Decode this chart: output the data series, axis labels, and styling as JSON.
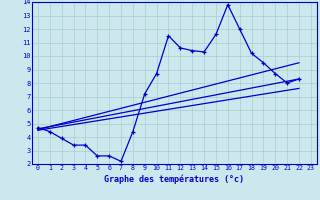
{
  "xlabel": "Graphe des températures (°c)",
  "xlim": [
    -0.5,
    23.5
  ],
  "ylim": [
    2,
    14
  ],
  "xticks": [
    0,
    1,
    2,
    3,
    4,
    5,
    6,
    7,
    8,
    9,
    10,
    11,
    12,
    13,
    14,
    15,
    16,
    17,
    18,
    19,
    20,
    21,
    22,
    23
  ],
  "yticks": [
    2,
    3,
    4,
    5,
    6,
    7,
    8,
    9,
    10,
    11,
    12,
    13,
    14
  ],
  "bg_color": "#cce8ee",
  "line_color": "#0000cc",
  "grid_color": "#aacccc",
  "temp_x": [
    0,
    1,
    2,
    3,
    4,
    5,
    6,
    7,
    8,
    9,
    10,
    11,
    12,
    13,
    14,
    15,
    16,
    17,
    18,
    19,
    20,
    21,
    22
  ],
  "temp_y": [
    4.7,
    4.4,
    3.9,
    3.4,
    3.4,
    2.6,
    2.6,
    2.2,
    4.4,
    7.2,
    8.7,
    11.5,
    10.6,
    10.4,
    10.3,
    11.6,
    13.8,
    12.0,
    10.2,
    9.5,
    8.7,
    8.0,
    8.3
  ],
  "trend1_x": [
    0,
    22
  ],
  "trend1_y": [
    4.6,
    8.3
  ],
  "trend2_x": [
    0,
    22
  ],
  "trend2_y": [
    4.55,
    9.5
  ],
  "trend3_x": [
    0,
    22
  ],
  "trend3_y": [
    4.5,
    7.6
  ]
}
